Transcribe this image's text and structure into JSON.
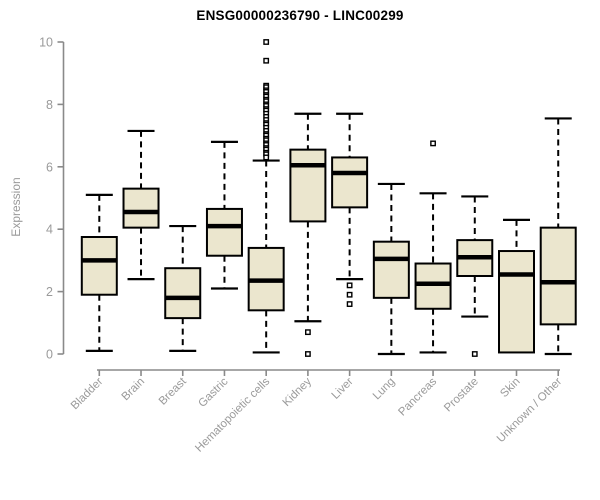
{
  "title": "ENSG00000236790 - LINC00299",
  "colors": {
    "background": "#ffffff",
    "box_fill": "#ebe6ce",
    "box_border": "#000000",
    "median": "#000000",
    "whisker": "#000000",
    "outlier_border": "#000000",
    "outlier_fill": "#ffffff",
    "axis_line": "#8a8a8a",
    "axis_text": "#9a9a9a",
    "title_text": "#000000"
  },
  "chart_data": {
    "type": "boxplot",
    "title": "ENSG00000236790 - LINC00299",
    "xlabel": "",
    "ylabel": "Expression",
    "ylim": [
      0,
      10
    ],
    "yticks": [
      0,
      2,
      4,
      6,
      8,
      10
    ],
    "grid": false,
    "legend": false,
    "categories": [
      "Bladder",
      "Brain",
      "Breast",
      "Gastric",
      "Hematopoietic cells",
      "Kidney",
      "Liver",
      "Lung",
      "Pancreas",
      "Prostate",
      "Skin",
      "Unknown / Other"
    ],
    "series": [
      {
        "name": "Bladder",
        "low": 0.1,
        "q1": 1.9,
        "median": 3.0,
        "q3": 3.75,
        "high": 5.1,
        "outliers": []
      },
      {
        "name": "Brain",
        "low": 2.4,
        "q1": 4.05,
        "median": 4.55,
        "q3": 5.3,
        "high": 7.15,
        "outliers": []
      },
      {
        "name": "Breast",
        "low": 0.1,
        "q1": 1.15,
        "median": 1.8,
        "q3": 2.75,
        "high": 4.1,
        "outliers": []
      },
      {
        "name": "Gastric",
        "low": 2.1,
        "q1": 3.15,
        "median": 4.1,
        "q3": 4.65,
        "high": 6.8,
        "outliers": []
      },
      {
        "name": "Hematopoietic cells",
        "low": 0.05,
        "q1": 1.4,
        "median": 2.35,
        "q3": 3.4,
        "high": 6.2,
        "outliers": [
          10.0,
          9.4,
          8.6,
          8.55,
          8.45,
          8.4,
          8.3,
          8.25,
          8.15,
          8.1,
          8.0,
          7.95,
          7.85,
          7.8,
          7.7,
          7.6,
          7.5,
          7.4,
          7.35,
          7.25,
          7.15,
          7.05,
          7.0,
          6.9,
          6.85,
          6.75,
          6.7,
          6.6,
          6.55,
          6.45,
          6.4,
          6.3
        ]
      },
      {
        "name": "Kidney",
        "low": 1.05,
        "q1": 4.25,
        "median": 6.05,
        "q3": 6.55,
        "high": 7.7,
        "outliers": [
          0.7,
          0.0
        ]
      },
      {
        "name": "Liver",
        "low": 2.4,
        "q1": 4.7,
        "median": 5.8,
        "q3": 6.3,
        "high": 7.7,
        "outliers": [
          2.2,
          1.9,
          1.6
        ]
      },
      {
        "name": "Lung",
        "low": 0.0,
        "q1": 1.8,
        "median": 3.05,
        "q3": 3.6,
        "high": 5.45,
        "outliers": []
      },
      {
        "name": "Pancreas",
        "low": 0.05,
        "q1": 1.45,
        "median": 2.25,
        "q3": 2.9,
        "high": 5.15,
        "outliers": [
          6.75
        ]
      },
      {
        "name": "Prostate",
        "low": 1.2,
        "q1": 2.5,
        "median": 3.1,
        "q3": 3.65,
        "high": 5.05,
        "outliers": [
          0.0
        ]
      },
      {
        "name": "Skin",
        "low": 0.05,
        "q1": 0.05,
        "median": 2.55,
        "q3": 3.3,
        "high": 4.3,
        "outliers": []
      },
      {
        "name": "Unknown / Other",
        "low": 0.0,
        "q1": 0.95,
        "median": 2.3,
        "q3": 4.05,
        "high": 7.55,
        "outliers": []
      }
    ]
  }
}
